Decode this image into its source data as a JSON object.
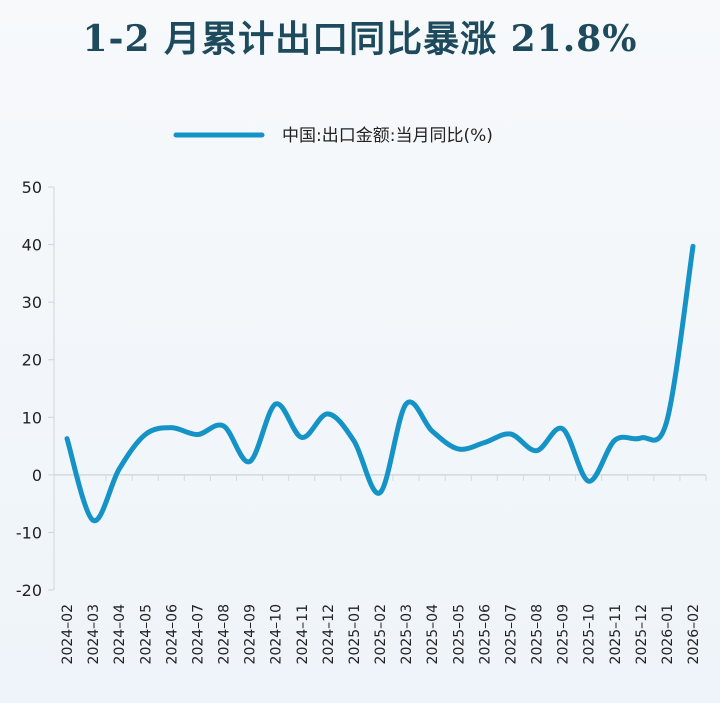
{
  "title": "1-2 月累计出口同比暴涨 21.8%",
  "chart_data": {
    "type": "line",
    "title": "1-2 月累计出口同比暴涨 21.8%",
    "xlabel": "",
    "ylabel": "",
    "ylim": [
      -20,
      50
    ],
    "yticks": [
      50,
      40,
      30,
      20,
      10,
      0,
      -10,
      -20
    ],
    "grid": false,
    "legend_position": "top-center",
    "categories": [
      "2024-02",
      "2024-03",
      "2024-04",
      "2024-05",
      "2024-06",
      "2024-07",
      "2024-08",
      "2024-09",
      "2024-10",
      "2024-11",
      "2024-12",
      "2025-01",
      "2025-02",
      "2025-03",
      "2025-04",
      "2025-05",
      "2025-06",
      "2025-07",
      "2025-08",
      "2025-09",
      "2025-10",
      "2025-11",
      "2025-12",
      "2026-01",
      "2026-02"
    ],
    "series": [
      {
        "name": "中国:出口金额:当月同比(%)",
        "color": "#1593c6",
        "values": [
          6.3,
          -7.9,
          1.0,
          7.0,
          8.2,
          7.0,
          8.5,
          2.3,
          12.3,
          6.5,
          10.6,
          5.9,
          -3.1,
          12.3,
          7.6,
          4.5,
          5.6,
          7.1,
          4.2,
          8.0,
          -1.1,
          6.0,
          6.4,
          9.4,
          39.7
        ]
      }
    ]
  }
}
